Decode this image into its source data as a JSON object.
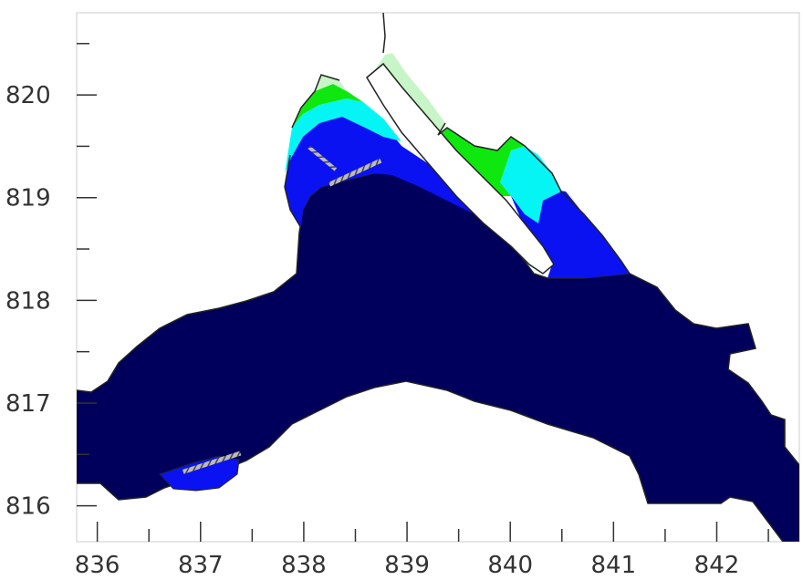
{
  "chart_data": {
    "type": "map",
    "title": "",
    "xlabel": "",
    "ylabel": "",
    "x_ticks": [
      "836",
      "837",
      "838",
      "839",
      "840",
      "841",
      "842"
    ],
    "y_ticks": [
      "816",
      "817",
      "818",
      "819",
      "820"
    ],
    "xlim": [
      835.8,
      842.8
    ],
    "ylim": [
      815.65,
      820.8
    ],
    "grid": false,
    "legend": "none",
    "colors": {
      "deep": "#00005c",
      "mid_blue": "#0b12f2",
      "cyan": "#05f5f5",
      "green": "#0fe80f",
      "pale_green": "#c7f5c7",
      "coast": "#222222"
    }
  }
}
